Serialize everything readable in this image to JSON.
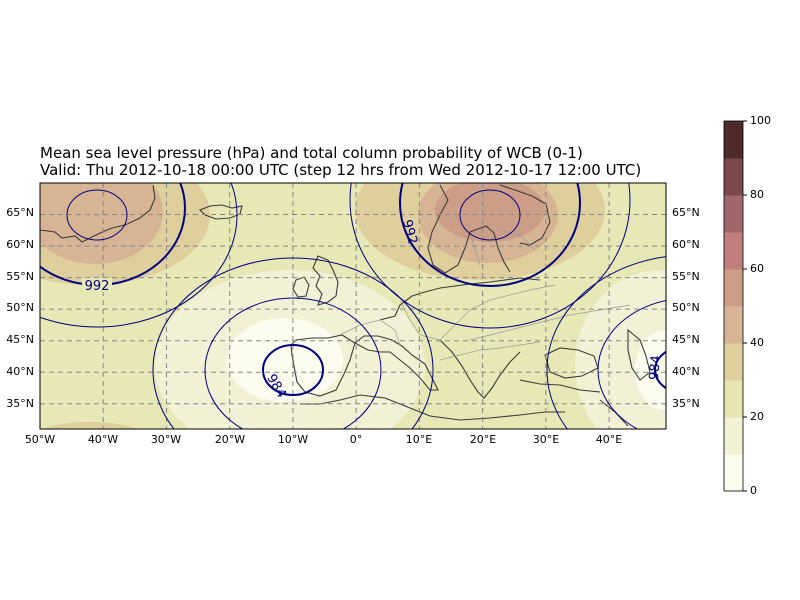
{
  "title_line1": "Mean sea level pressure (hPa) and total column probability of WCB (0-1)",
  "title_line2": "Valid: Thu 2012-10-18 00:00 UTC (step 12 hrs from Wed 2012-10-17 12:00 UTC)",
  "map": {
    "lon_range": [
      -50,
      49
    ],
    "lat_range": [
      31,
      70
    ],
    "gridlines": true,
    "x_ticks": [
      "50°W",
      "40°W",
      "30°W",
      "20°W",
      "10°W",
      "0°",
      "10°E",
      "20°E",
      "30°E",
      "40°E"
    ],
    "y_ticks": [
      "35°N",
      "40°N",
      "45°N",
      "50°N",
      "55°N",
      "60°N",
      "65°N"
    ],
    "isobar_labels": [
      {
        "text": "992",
        "lon": -41,
        "lat": 54.5
      },
      {
        "text": "984",
        "lon": -13,
        "lat": 37.5
      },
      {
        "text": "992",
        "lon": 8,
        "lat": 61.5
      },
      {
        "text": "984",
        "lon": 47.5,
        "lat": 40
      }
    ],
    "colors": {
      "coast": "#3a3a3a",
      "border": "#9a9a9a",
      "isobar": "#00007f",
      "background": "#e8e7b6"
    }
  },
  "colorbar": {
    "ticks": [
      "0",
      "20",
      "40",
      "60",
      "80",
      "100"
    ],
    "bins": [
      0,
      10,
      20,
      30,
      40,
      50,
      60,
      70,
      80,
      90,
      100
    ],
    "colors": [
      "#fbfbee",
      "#f2f1d6",
      "#e7e5b2",
      "#dfcf9c",
      "#d7b594",
      "#cc9e88",
      "#c07f7d",
      "#a26768",
      "#7d4a4b",
      "#4e2a2b"
    ]
  }
}
